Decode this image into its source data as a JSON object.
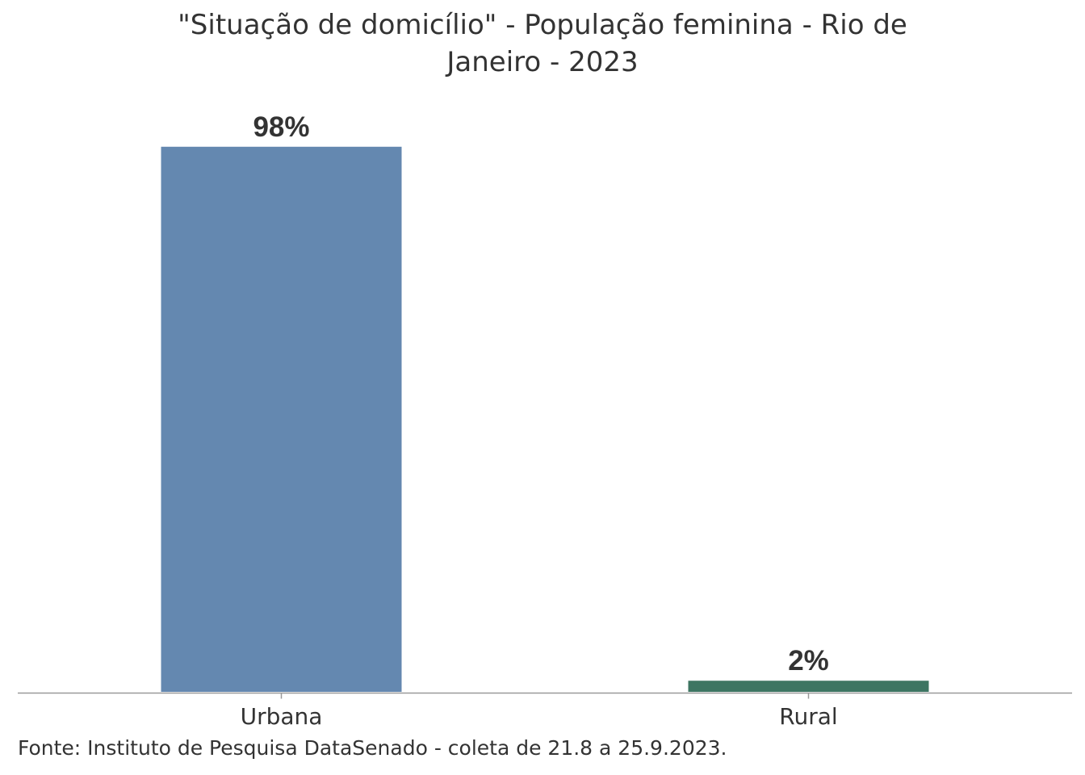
{
  "chart_data": {
    "type": "bar",
    "title_lines": [
      "\"Situação de domicílio\" - População feminina - Rio de",
      "Janeiro - 2023"
    ],
    "categories": [
      "Urbana",
      "Rural"
    ],
    "values": [
      98,
      2
    ],
    "value_labels": [
      "98%",
      "2%"
    ],
    "colors": [
      "#6488b0",
      "#3d7562"
    ],
    "ylim": [
      0,
      100
    ],
    "grid": false,
    "legend": "none"
  },
  "source_note": "Fonte: Instituto de Pesquisa DataSenado - coleta de 21.8 a 25.9.2023.",
  "style": {
    "label_color": "#333333",
    "axis_color": "#999999"
  }
}
